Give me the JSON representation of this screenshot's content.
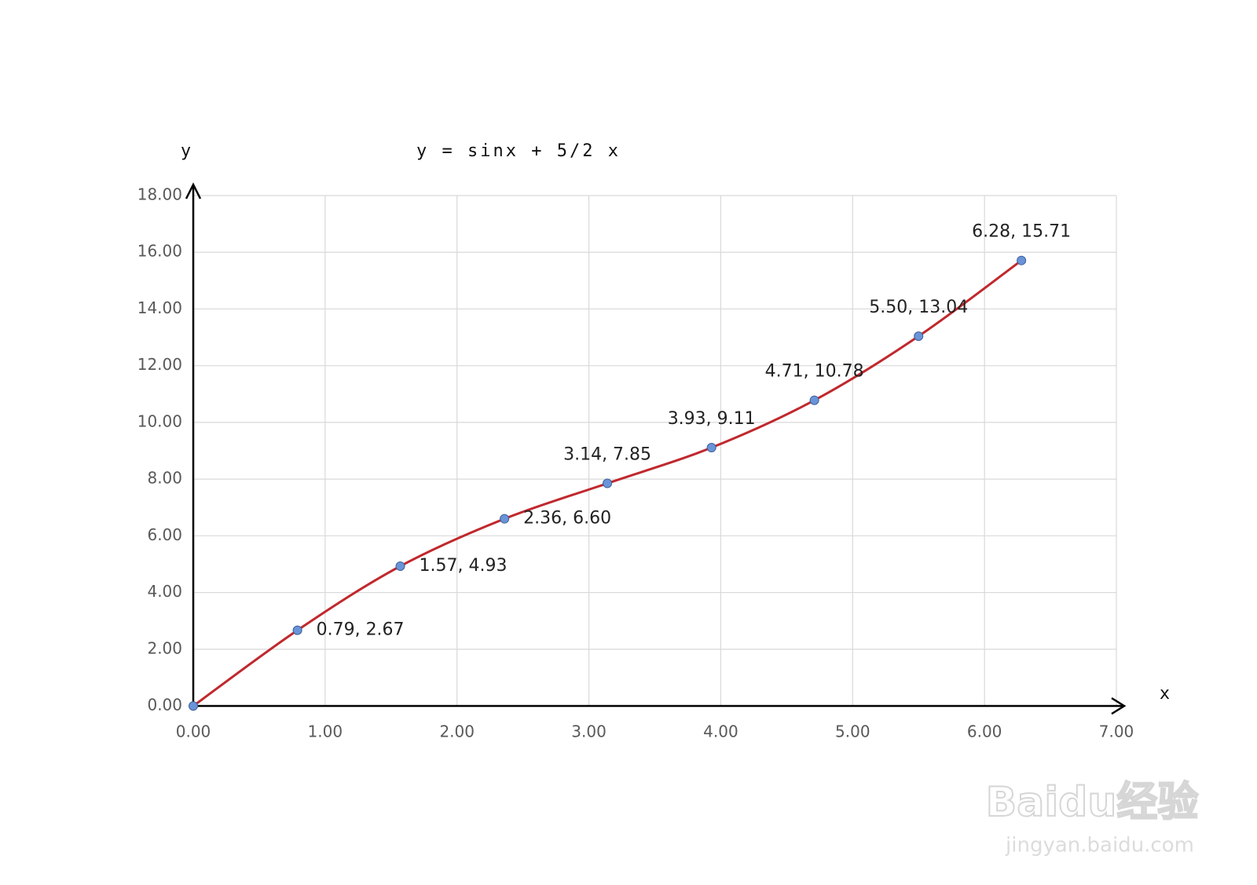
{
  "chart_data": {
    "type": "scatter",
    "title": "y = sinx + 5/2 x",
    "x_label": "x",
    "y_label": "y",
    "x": [
      0,
      0.79,
      1.57,
      2.36,
      3.14,
      3.93,
      4.71,
      5.5,
      6.28
    ],
    "values": [
      0,
      2.67,
      4.93,
      6.6,
      7.85,
      9.11,
      10.78,
      13.04,
      15.71
    ],
    "value_labels": [
      null,
      "0.79, 2.67",
      "1.57, 4.93",
      "2.36, 6.60",
      "3.14, 7.85",
      "3.93, 9.11",
      "4.71, 10.78",
      "5.50, 13.04",
      "6.28, 15.71"
    ],
    "line_color": "#c0282d",
    "marker_color": "#6a94d8",
    "smooth": true,
    "grid": true,
    "xlim": [
      0,
      7
    ],
    "ylim": [
      0,
      18
    ],
    "xticks": [
      {
        "value": 0,
        "label": "0.00"
      },
      {
        "value": 1,
        "label": "1.00"
      },
      {
        "value": 2,
        "label": "2.00"
      },
      {
        "value": 3,
        "label": "3.00"
      },
      {
        "value": 4,
        "label": "4.00"
      },
      {
        "value": 5,
        "label": "5.00"
      },
      {
        "value": 6,
        "label": "6.00"
      },
      {
        "value": 7,
        "label": "7.00"
      }
    ],
    "yticks": [
      {
        "value": 0,
        "label": "0.00"
      },
      {
        "value": 2,
        "label": "2.00"
      },
      {
        "value": 4,
        "label": "4.00"
      },
      {
        "value": 6,
        "label": "6.00"
      },
      {
        "value": 8,
        "label": "8.00"
      },
      {
        "value": 10,
        "label": "10.00"
      },
      {
        "value": 12,
        "label": "12.00"
      },
      {
        "value": 14,
        "label": "14.00"
      },
      {
        "value": 16,
        "label": "16.00"
      },
      {
        "value": 18,
        "label": "18.00"
      }
    ]
  },
  "watermark": {
    "brand": "Baidu经验",
    "url": "jingyan.baidu.com"
  }
}
